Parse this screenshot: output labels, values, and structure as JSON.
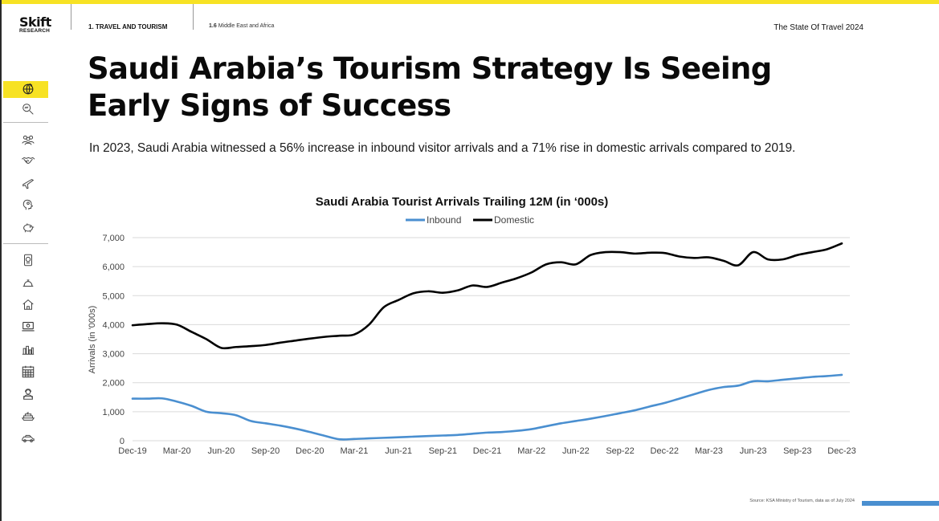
{
  "header": {
    "logo_main": "Skift",
    "logo_sub": "RESEARCH",
    "section": "1. TRAVEL AND TOURISM",
    "subsection_num": "1.6",
    "subsection": "Middle East and Africa",
    "report": "The State Of Travel 2024"
  },
  "page": {
    "title_line1": "Saudi Arabia’s Tourism Strategy Is Seeing",
    "title_line2": "Early Signs of Success",
    "subtitle": "In 2023, Saudi Arabia witnessed a 56% increase in inbound visitor arrivals and a 71% rise in domestic arrivals compared to 2019.",
    "source": "Source: KSA Ministry of Tourism, data as of July 2024"
  },
  "sidebar": {
    "icons": [
      "globe-icon",
      "search-chart-icon",
      "people-icon",
      "handshake-icon",
      "plane-icon",
      "brain-icon",
      "piggy-bank-icon",
      "passport-icon",
      "hotel-bell-icon",
      "house-icon",
      "laptop-icon",
      "city-icon",
      "calendar-icon",
      "agent-icon",
      "cruise-ship-icon",
      "car-icon"
    ],
    "active_index": 0
  },
  "colors": {
    "accent_yellow": "#f7e224",
    "inbound": "#4a8fd0",
    "domestic": "#000000",
    "grid": "#d9d9d9"
  },
  "chart_data": {
    "type": "line",
    "title": "Saudi Arabia Tourist Arrivals Trailing 12M (in ‘000s)",
    "xlabel": "",
    "ylabel": "Arrivals (in '000s)",
    "ylim": [
      0,
      7000
    ],
    "yticks": [
      "0",
      "1,000",
      "2,000",
      "3,000",
      "4,000",
      "5,000",
      "6,000",
      "7,000"
    ],
    "ytick_values": [
      0,
      1000,
      2000,
      3000,
      4000,
      5000,
      6000,
      7000
    ],
    "xtick_labels": [
      "Dec-19",
      "Mar-20",
      "Jun-20",
      "Sep-20",
      "Dec-20",
      "Mar-21",
      "Jun-21",
      "Sep-21",
      "Dec-21",
      "Mar-22",
      "Jun-22",
      "Sep-22",
      "Dec-22",
      "Mar-23",
      "Jun-23",
      "Sep-23",
      "Dec-23"
    ],
    "grid": "horizontal",
    "legend_position": "top-center",
    "x": [
      "Dec-19",
      "Jan-20",
      "Feb-20",
      "Mar-20",
      "Apr-20",
      "May-20",
      "Jun-20",
      "Jul-20",
      "Aug-20",
      "Sep-20",
      "Oct-20",
      "Nov-20",
      "Dec-20",
      "Jan-21",
      "Feb-21",
      "Mar-21",
      "Apr-21",
      "May-21",
      "Jun-21",
      "Jul-21",
      "Aug-21",
      "Sep-21",
      "Oct-21",
      "Nov-21",
      "Dec-21",
      "Jan-22",
      "Feb-22",
      "Mar-22",
      "Apr-22",
      "May-22",
      "Jun-22",
      "Jul-22",
      "Aug-22",
      "Sep-22",
      "Oct-22",
      "Nov-22",
      "Dec-22",
      "Jan-23",
      "Feb-23",
      "Mar-23",
      "Apr-23",
      "May-23",
      "Jun-23",
      "Jul-23",
      "Aug-23",
      "Sep-23",
      "Oct-23",
      "Nov-23",
      "Dec-23"
    ],
    "series": [
      {
        "name": "Inbound",
        "color": "#4a8fd0",
        "values": [
          1450,
          1450,
          1460,
          1350,
          1200,
          1000,
          950,
          880,
          680,
          600,
          520,
          420,
          300,
          170,
          50,
          60,
          80,
          100,
          120,
          140,
          160,
          180,
          200,
          240,
          280,
          300,
          340,
          400,
          500,
          600,
          680,
          760,
          850,
          950,
          1050,
          1180,
          1300,
          1450,
          1600,
          1750,
          1850,
          1900,
          2050,
          2050,
          2100,
          2150,
          2200,
          2230,
          2270
        ]
      },
      {
        "name": "Domestic",
        "color": "#000000",
        "values": [
          3980,
          4020,
          4050,
          4000,
          3750,
          3500,
          3200,
          3230,
          3260,
          3300,
          3380,
          3450,
          3520,
          3580,
          3620,
          3660,
          4000,
          4600,
          4850,
          5080,
          5150,
          5100,
          5180,
          5350,
          5300,
          5450,
          5600,
          5800,
          6080,
          6150,
          6080,
          6400,
          6500,
          6500,
          6450,
          6480,
          6470,
          6350,
          6300,
          6320,
          6200,
          6050,
          6500,
          6250,
          6250,
          6400,
          6500,
          6600,
          6800
        ]
      }
    ]
  }
}
